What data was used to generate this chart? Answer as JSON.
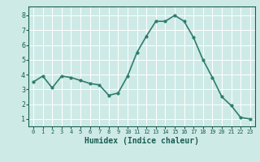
{
  "x": [
    0,
    1,
    2,
    3,
    4,
    5,
    6,
    7,
    8,
    9,
    10,
    11,
    12,
    13,
    14,
    15,
    16,
    17,
    18,
    19,
    20,
    21,
    22,
    23
  ],
  "y": [
    3.5,
    3.9,
    3.1,
    3.9,
    3.8,
    3.6,
    3.4,
    3.3,
    2.6,
    2.75,
    3.9,
    5.5,
    6.6,
    7.6,
    7.6,
    8.0,
    7.6,
    6.5,
    5.0,
    3.8,
    2.5,
    1.9,
    1.1,
    1.0
  ],
  "line_color": "#2e7d6e",
  "marker": "o",
  "marker_size": 2.0,
  "bg_color": "#ceeae7",
  "grid_color": "#ffffff",
  "xlabel": "Humidex (Indice chaleur)",
  "xlabel_fontsize": 7,
  "xlabel_color": "#1a5e52",
  "tick_color": "#1a5e52",
  "tick_fontsize": 5,
  "ylim": [
    0.5,
    8.6
  ],
  "xlim": [
    -0.5,
    23.5
  ],
  "yticks": [
    1,
    2,
    3,
    4,
    5,
    6,
    7,
    8
  ],
  "xticks": [
    0,
    1,
    2,
    3,
    4,
    5,
    6,
    7,
    8,
    9,
    10,
    11,
    12,
    13,
    14,
    15,
    16,
    17,
    18,
    19,
    20,
    21,
    22,
    23
  ],
  "line_width": 1.2
}
